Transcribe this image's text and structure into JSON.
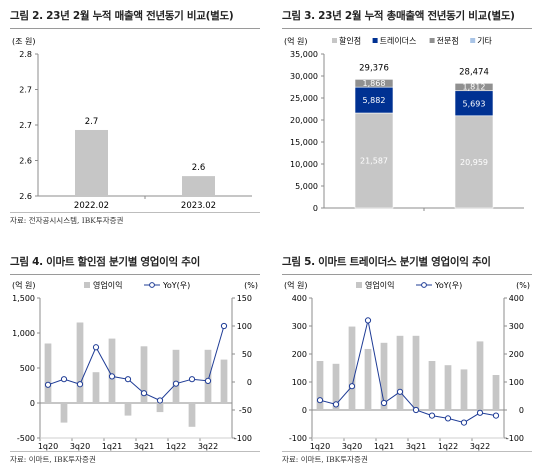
{
  "panels": {
    "p1": {
      "title": "그림 2. 23년 2월 누적 매출액 전년동기 비교(별도)",
      "source": "자료: 전자공시시스템, IBK투자증권"
    },
    "p2": {
      "title": "그림 3. 23년 2월 누적 총매출액 전년동기 비교(별도)",
      "source": "자료: 전자공시시스템, IBK투자증권"
    },
    "p3": {
      "title": "그림 4. 이마트 할인점 분기별 영업이익 추이",
      "source": "자료: 이마트, IBK투자증권"
    },
    "p4": {
      "title": "그림 5. 이마트 트레이더스 분기별 영업이익 추이",
      "source": "자료: 이마트, IBK투자증권"
    }
  },
  "colors": {
    "gray_bar": "#c6c6c6",
    "navy": "#003192",
    "light_blue": "#a9c4e6",
    "line_blue": "#1f3c96",
    "axis": "#8c8c8c"
  },
  "chart_data": [
    {
      "type": "bar",
      "unit": "(조 원)",
      "categories": [
        "2022.02",
        "2023.02"
      ],
      "values": [
        2.7,
        2.6
      ],
      "value_labels": [
        "2.7",
        "2.6"
      ],
      "bar_tops": [
        2.693,
        2.628
      ],
      "ylim": [
        2.6,
        2.8
      ],
      "yticks": [
        "2.6",
        "2.6",
        "2.7",
        "2.7",
        "2.8"
      ],
      "grid": false
    },
    {
      "type": "bar",
      "stacked": true,
      "unit": "(억 원)",
      "categories": [
        "2022.02",
        "2023.02"
      ],
      "series": [
        {
          "name": "할인점",
          "values": [
            21587,
            20959
          ],
          "labels": [
            "21,587",
            "20,959"
          ]
        },
        {
          "name": "트레이더스",
          "values": [
            5882,
            5693
          ],
          "labels": [
            "5,882",
            "5,693"
          ]
        },
        {
          "name": "전문점",
          "values": [
            1868,
            1812
          ],
          "labels": [
            "1,868",
            "1,812"
          ]
        },
        {
          "name": "기타",
          "values": [
            39,
            10
          ]
        }
      ],
      "totals": [
        "29,376",
        "28,474"
      ],
      "ylim": [
        0,
        35000
      ],
      "yticks": [
        "0",
        "5,000",
        "10,000",
        "15,000",
        "20,000",
        "25,000",
        "30,000",
        "35,000"
      ],
      "legend_position": "top",
      "grid": false
    },
    {
      "type": "bar",
      "combo": "bar+line",
      "units": {
        "left": "(억 원)",
        "right": "(%)"
      },
      "categories": [
        "1q20",
        "2q20",
        "3q20",
        "4q20",
        "1q21",
        "2q21",
        "3q21",
        "4q21",
        "1q22",
        "2q22",
        "3q22",
        "4q22"
      ],
      "xtick_labels": [
        "1q20",
        "3q20",
        "1q21",
        "3q21",
        "1q22",
        "3q22"
      ],
      "series": [
        {
          "name": "영업이익",
          "type": "bar",
          "axis": "left",
          "values": [
            850,
            -280,
            1150,
            440,
            920,
            -180,
            810,
            -130,
            760,
            -340,
            760,
            620
          ]
        },
        {
          "name": "YoY(우)",
          "type": "line",
          "axis": "right",
          "values": [
            -5,
            5,
            -4,
            62,
            10,
            5,
            -20,
            -33,
            -3,
            5,
            2,
            100
          ]
        }
      ],
      "ylim_left": [
        -500,
        1500
      ],
      "ylim_right": [
        -100,
        150
      ],
      "yticks_left": [
        "-500",
        "0",
        "500",
        "1,000",
        "1,500"
      ],
      "yticks_right": [
        "-100",
        "-50",
        "0",
        "50",
        "100",
        "150"
      ],
      "legend_position": "top",
      "grid": false
    },
    {
      "type": "bar",
      "combo": "bar+line",
      "units": {
        "left": "(억 원)",
        "right": "(%)"
      },
      "categories": [
        "1q20",
        "2q20",
        "3q20",
        "4q20",
        "1q21",
        "2q21",
        "3q21",
        "4q21",
        "1q22",
        "2q22",
        "3q22",
        "4q22"
      ],
      "xtick_labels": [
        "1q20",
        "3q20",
        "1q21",
        "3q21",
        "1q22",
        "3q22"
      ],
      "series": [
        {
          "name": "영업이익",
          "type": "bar",
          "axis": "left",
          "values": [
            175,
            165,
            298,
            218,
            240,
            265,
            265,
            175,
            160,
            145,
            245,
            125
          ]
        },
        {
          "name": "YoY(우)",
          "type": "line",
          "axis": "right",
          "values": [
            35,
            20,
            85,
            320,
            25,
            65,
            0,
            -20,
            -30,
            -45,
            -10,
            -20
          ]
        }
      ],
      "ylim_left": [
        -100,
        400
      ],
      "ylim_right": [
        -100,
        400
      ],
      "yticks_left": [
        "-100",
        "0",
        "100",
        "200",
        "300",
        "400"
      ],
      "yticks_right": [
        "-100",
        "0",
        "100",
        "200",
        "300",
        "400"
      ],
      "legend_position": "top",
      "grid": false
    }
  ]
}
